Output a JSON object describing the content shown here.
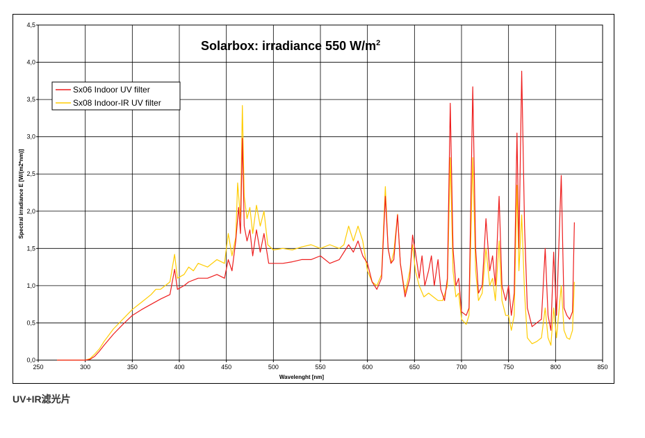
{
  "caption": "UV+IR滤光片",
  "chart_data": {
    "type": "line",
    "title": "Solarbox: irradiance 550 W/m",
    "title_superscript": "2",
    "xlabel": "Wavelenght [nm]",
    "ylabel": "Spectral irradiance E [W/(m2*nm)]",
    "xlim": [
      250,
      850
    ],
    "ylim": [
      0,
      4.5
    ],
    "x_ticks": [
      "250",
      "300",
      "350",
      "400",
      "450",
      "500",
      "550",
      "600",
      "650",
      "700",
      "750",
      "800",
      "850"
    ],
    "y_ticks": [
      "0,0",
      "0,5",
      "1,0",
      "1,5",
      "2,0",
      "2,5",
      "3,0",
      "3,5",
      "4,0",
      "4,5"
    ],
    "grid": true,
    "legend_position": "top-left",
    "series": [
      {
        "name": "Sx06 Indoor UV filter",
        "color": "#ee1c1c",
        "points": [
          [
            270,
            0
          ],
          [
            300,
            0
          ],
          [
            305,
            0.01
          ],
          [
            310,
            0.05
          ],
          [
            315,
            0.12
          ],
          [
            320,
            0.2
          ],
          [
            330,
            0.35
          ],
          [
            340,
            0.48
          ],
          [
            350,
            0.6
          ],
          [
            360,
            0.68
          ],
          [
            370,
            0.75
          ],
          [
            380,
            0.82
          ],
          [
            390,
            0.88
          ],
          [
            395,
            1.22
          ],
          [
            398,
            0.95
          ],
          [
            405,
            1.0
          ],
          [
            410,
            1.05
          ],
          [
            420,
            1.1
          ],
          [
            430,
            1.1
          ],
          [
            440,
            1.15
          ],
          [
            448,
            1.1
          ],
          [
            452,
            1.35
          ],
          [
            456,
            1.2
          ],
          [
            460,
            1.6
          ],
          [
            463,
            2.05
          ],
          [
            465,
            1.7
          ],
          [
            467,
            2.98
          ],
          [
            469,
            1.8
          ],
          [
            472,
            1.6
          ],
          [
            475,
            1.75
          ],
          [
            478,
            1.4
          ],
          [
            482,
            1.75
          ],
          [
            486,
            1.45
          ],
          [
            490,
            1.7
          ],
          [
            495,
            1.3
          ],
          [
            500,
            1.3
          ],
          [
            510,
            1.3
          ],
          [
            520,
            1.32
          ],
          [
            530,
            1.35
          ],
          [
            540,
            1.35
          ],
          [
            550,
            1.4
          ],
          [
            560,
            1.3
          ],
          [
            570,
            1.35
          ],
          [
            580,
            1.55
          ],
          [
            585,
            1.45
          ],
          [
            590,
            1.6
          ],
          [
            595,
            1.4
          ],
          [
            600,
            1.3
          ],
          [
            605,
            1.05
          ],
          [
            610,
            0.95
          ],
          [
            615,
            1.1
          ],
          [
            619,
            2.2
          ],
          [
            622,
            1.5
          ],
          [
            625,
            1.3
          ],
          [
            628,
            1.35
          ],
          [
            632,
            1.95
          ],
          [
            635,
            1.3
          ],
          [
            640,
            0.85
          ],
          [
            645,
            1.1
          ],
          [
            648,
            1.68
          ],
          [
            651,
            1.45
          ],
          [
            655,
            1.1
          ],
          [
            658,
            1.4
          ],
          [
            661,
            1.0
          ],
          [
            665,
            1.2
          ],
          [
            668,
            1.4
          ],
          [
            671,
            1.0
          ],
          [
            675,
            1.35
          ],
          [
            678,
            0.95
          ],
          [
            682,
            0.8
          ],
          [
            685,
            1.1
          ],
          [
            688,
            3.45
          ],
          [
            691,
            1.5
          ],
          [
            694,
            1.0
          ],
          [
            697,
            1.1
          ],
          [
            700,
            0.65
          ],
          [
            705,
            0.6
          ],
          [
            708,
            0.7
          ],
          [
            712,
            3.67
          ],
          [
            715,
            1.5
          ],
          [
            718,
            0.9
          ],
          [
            722,
            1.0
          ],
          [
            726,
            1.9
          ],
          [
            730,
            1.2
          ],
          [
            733,
            1.4
          ],
          [
            736,
            1.0
          ],
          [
            740,
            2.2
          ],
          [
            743,
            1.0
          ],
          [
            747,
            0.8
          ],
          [
            750,
            1.0
          ],
          [
            753,
            0.6
          ],
          [
            756,
            0.9
          ],
          [
            759,
            3.05
          ],
          [
            761,
            1.5
          ],
          [
            764,
            3.88
          ],
          [
            767,
            1.8
          ],
          [
            770,
            0.7
          ],
          [
            775,
            0.45
          ],
          [
            780,
            0.5
          ],
          [
            785,
            0.55
          ],
          [
            789,
            1.5
          ],
          [
            792,
            0.6
          ],
          [
            795,
            0.4
          ],
          [
            798,
            1.45
          ],
          [
            801,
            0.6
          ],
          [
            806,
            2.48
          ],
          [
            809,
            0.7
          ],
          [
            812,
            0.6
          ],
          [
            815,
            0.55
          ],
          [
            818,
            0.65
          ],
          [
            820,
            1.85
          ]
        ]
      },
      {
        "name": "Sx08 Indoor-IR UV filter",
        "color": "#ffcc00",
        "points": [
          [
            270,
            0
          ],
          [
            300,
            0
          ],
          [
            305,
            0.02
          ],
          [
            310,
            0.08
          ],
          [
            315,
            0.15
          ],
          [
            320,
            0.25
          ],
          [
            330,
            0.42
          ],
          [
            340,
            0.55
          ],
          [
            350,
            0.68
          ],
          [
            360,
            0.78
          ],
          [
            370,
            0.88
          ],
          [
            375,
            0.95
          ],
          [
            380,
            0.95
          ],
          [
            385,
            1.0
          ],
          [
            390,
            1.05
          ],
          [
            395,
            1.42
          ],
          [
            398,
            1.1
          ],
          [
            405,
            1.15
          ],
          [
            410,
            1.25
          ],
          [
            415,
            1.2
          ],
          [
            420,
            1.3
          ],
          [
            430,
            1.25
          ],
          [
            440,
            1.35
          ],
          [
            448,
            1.3
          ],
          [
            452,
            1.7
          ],
          [
            456,
            1.4
          ],
          [
            460,
            1.65
          ],
          [
            462,
            2.38
          ],
          [
            465,
            1.9
          ],
          [
            467,
            3.42
          ],
          [
            469,
            2.2
          ],
          [
            472,
            1.9
          ],
          [
            475,
            2.05
          ],
          [
            478,
            1.7
          ],
          [
            482,
            2.08
          ],
          [
            486,
            1.8
          ],
          [
            490,
            2.0
          ],
          [
            494,
            1.55
          ],
          [
            500,
            1.48
          ],
          [
            510,
            1.5
          ],
          [
            520,
            1.48
          ],
          [
            530,
            1.52
          ],
          [
            540,
            1.55
          ],
          [
            550,
            1.5
          ],
          [
            560,
            1.55
          ],
          [
            570,
            1.5
          ],
          [
            575,
            1.55
          ],
          [
            580,
            1.8
          ],
          [
            585,
            1.6
          ],
          [
            590,
            1.8
          ],
          [
            595,
            1.6
          ],
          [
            600,
            1.2
          ],
          [
            605,
            1.05
          ],
          [
            610,
            1.0
          ],
          [
            615,
            1.15
          ],
          [
            619,
            2.33
          ],
          [
            622,
            1.5
          ],
          [
            625,
            1.3
          ],
          [
            628,
            1.45
          ],
          [
            632,
            1.96
          ],
          [
            635,
            1.3
          ],
          [
            640,
            0.9
          ],
          [
            645,
            1.2
          ],
          [
            648,
            1.55
          ],
          [
            651,
            1.2
          ],
          [
            655,
            1.0
          ],
          [
            660,
            0.85
          ],
          [
            665,
            0.9
          ],
          [
            670,
            0.85
          ],
          [
            675,
            0.8
          ],
          [
            680,
            0.8
          ],
          [
            685,
            1.0
          ],
          [
            688,
            2.72
          ],
          [
            691,
            1.2
          ],
          [
            694,
            0.85
          ],
          [
            697,
            0.9
          ],
          [
            700,
            0.55
          ],
          [
            705,
            0.48
          ],
          [
            708,
            0.6
          ],
          [
            712,
            2.72
          ],
          [
            715,
            1.2
          ],
          [
            718,
            0.8
          ],
          [
            722,
            0.9
          ],
          [
            726,
            1.5
          ],
          [
            730,
            1.0
          ],
          [
            733,
            1.1
          ],
          [
            736,
            0.8
          ],
          [
            740,
            1.6
          ],
          [
            743,
            0.8
          ],
          [
            747,
            0.6
          ],
          [
            750,
            0.6
          ],
          [
            753,
            0.4
          ],
          [
            756,
            0.6
          ],
          [
            759,
            2.35
          ],
          [
            761,
            1.2
          ],
          [
            764,
            1.95
          ],
          [
            767,
            0.9
          ],
          [
            770,
            0.3
          ],
          [
            775,
            0.22
          ],
          [
            780,
            0.25
          ],
          [
            785,
            0.3
          ],
          [
            789,
            0.7
          ],
          [
            792,
            0.3
          ],
          [
            795,
            0.2
          ],
          [
            798,
            0.7
          ],
          [
            801,
            0.3
          ],
          [
            806,
            1.0
          ],
          [
            809,
            0.4
          ],
          [
            812,
            0.3
          ],
          [
            815,
            0.28
          ],
          [
            818,
            0.4
          ],
          [
            820,
            1.05
          ]
        ]
      }
    ]
  }
}
